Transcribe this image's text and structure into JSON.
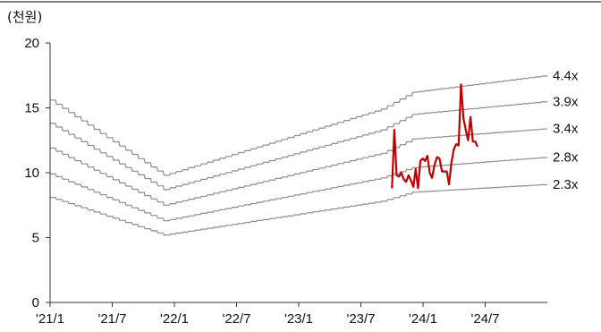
{
  "chart_data": {
    "type": "line",
    "unit_label": "(천원)",
    "ylim": [
      0,
      20
    ],
    "yticks": [
      "0",
      "5",
      "10",
      "15",
      "20"
    ],
    "x_tick_labels": [
      "'21/1",
      "'21/7",
      "'22/1",
      "'22/7",
      "'23/1",
      "'23/7",
      "'24/1",
      "'24/7"
    ],
    "x_tick_dates": [
      "2021-01",
      "2021-07",
      "2022-01",
      "2022-07",
      "2023-01",
      "2023-07",
      "2024-01",
      "2024-07"
    ],
    "xlim": [
      "2021-01",
      "2025-01"
    ],
    "grid": false,
    "colors": {
      "price": "#c00000",
      "band": "#8c8c8c",
      "axis": "#333333",
      "top_border": "#7f7f7f"
    },
    "band_series": [
      {
        "name": "4.4x",
        "points": [
          [
            "2021-01",
            15.6
          ],
          [
            "2021-12",
            9.8
          ],
          [
            "2023-09",
            14.9
          ],
          [
            "2023-12",
            16.2
          ],
          [
            "2025-01",
            17.5
          ]
        ]
      },
      {
        "name": "3.9x",
        "points": [
          [
            "2021-01",
            13.8
          ],
          [
            "2021-12",
            8.7
          ],
          [
            "2023-09",
            13.3
          ],
          [
            "2023-12",
            14.5
          ],
          [
            "2025-01",
            15.5
          ]
        ]
      },
      {
        "name": "3.4x",
        "points": [
          [
            "2021-01",
            11.9
          ],
          [
            "2021-12",
            7.5
          ],
          [
            "2023-09",
            11.5
          ],
          [
            "2023-12",
            12.6
          ],
          [
            "2025-01",
            13.4
          ]
        ]
      },
      {
        "name": "2.8x",
        "points": [
          [
            "2021-01",
            9.9
          ],
          [
            "2021-12",
            6.3
          ],
          [
            "2023-09",
            9.6
          ],
          [
            "2023-12",
            10.4
          ],
          [
            "2025-01",
            11.2
          ]
        ]
      },
      {
        "name": "2.3x",
        "points": [
          [
            "2021-01",
            8.1
          ],
          [
            "2021-12",
            5.2
          ],
          [
            "2023-09",
            7.8
          ],
          [
            "2023-12",
            8.5
          ],
          [
            "2025-01",
            9.1
          ]
        ]
      }
    ],
    "price_series": {
      "points": [
        [
          "2023-10-01",
          8.8
        ],
        [
          "2023-10-08",
          13.3
        ],
        [
          "2023-10-15",
          9.8
        ],
        [
          "2023-10-22",
          9.7
        ],
        [
          "2023-10-29",
          10.0
        ],
        [
          "2023-11-05",
          9.5
        ],
        [
          "2023-11-12",
          9.3
        ],
        [
          "2023-11-19",
          9.8
        ],
        [
          "2023-11-26",
          9.4
        ],
        [
          "2023-12-03",
          8.9
        ],
        [
          "2023-12-10",
          10.3
        ],
        [
          "2023-12-17",
          8.8
        ],
        [
          "2023-12-24",
          10.9
        ],
        [
          "2023-12-31",
          11.1
        ],
        [
          "2024-01-07",
          10.9
        ],
        [
          "2024-01-14",
          11.3
        ],
        [
          "2024-01-21",
          10.0
        ],
        [
          "2024-01-28",
          9.6
        ],
        [
          "2024-02-04",
          10.6
        ],
        [
          "2024-02-11",
          11.2
        ],
        [
          "2024-02-18",
          11.1
        ],
        [
          "2024-02-25",
          10.1
        ],
        [
          "2024-03-03",
          10.1
        ],
        [
          "2024-03-10",
          10.1
        ],
        [
          "2024-03-17",
          9.1
        ],
        [
          "2024-03-24",
          10.8
        ],
        [
          "2024-03-31",
          11.8
        ],
        [
          "2024-04-07",
          12.2
        ],
        [
          "2024-04-14",
          12.1
        ],
        [
          "2024-04-21",
          16.8
        ],
        [
          "2024-04-28",
          14.2
        ],
        [
          "2024-05-05",
          13.3
        ],
        [
          "2024-05-12",
          12.5
        ],
        [
          "2024-05-19",
          14.3
        ],
        [
          "2024-05-26",
          12.4
        ],
        [
          "2024-06-02",
          12.4
        ],
        [
          "2024-06-09",
          12.0
        ]
      ]
    }
  }
}
